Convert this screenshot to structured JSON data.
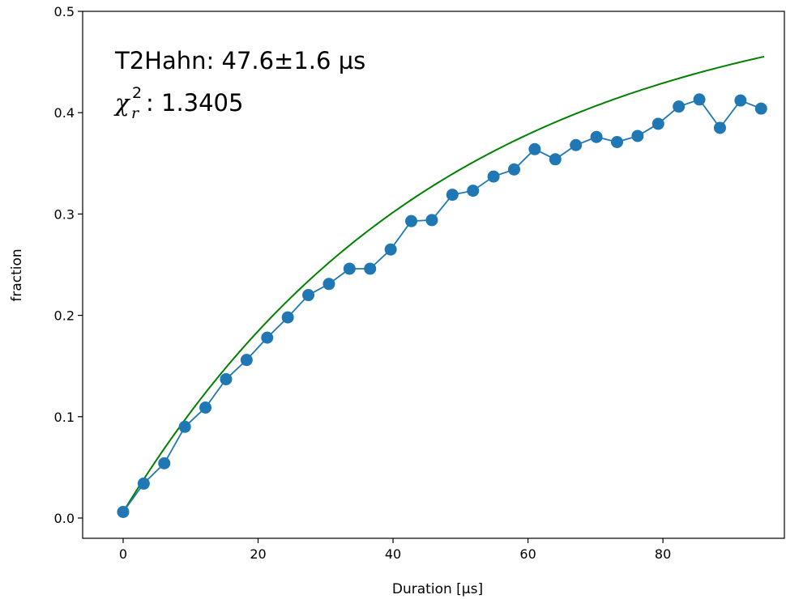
{
  "chart_data": {
    "type": "line",
    "xlabel": "Duration [µs]",
    "ylabel": "fraction",
    "xlim": [
      -6,
      98
    ],
    "ylim": [
      -0.02,
      0.5
    ],
    "xticks": [
      0,
      20,
      40,
      60,
      80
    ],
    "xtick_labels": [
      "0",
      "20",
      "40",
      "60",
      "80"
    ],
    "yticks": [
      0.0,
      0.1,
      0.2,
      0.3,
      0.4,
      0.5
    ],
    "ytick_labels": [
      "0.0",
      "0.1",
      "0.2",
      "0.3",
      "0.4",
      "0.5"
    ],
    "grid": false,
    "annotation": {
      "line1": "T2Hahn: 47.6±1.6 µs",
      "chi_symbol": "χ",
      "chi_sub": "r",
      "chi_sup": "2",
      "chi_value": ": 1.3405"
    },
    "series": [
      {
        "style": "line-markers",
        "color": "#1f77b4",
        "x": [
          0,
          3.05,
          6.1,
          9.15,
          12.2,
          15.25,
          18.3,
          21.35,
          24.4,
          27.45,
          30.5,
          33.55,
          36.6,
          39.65,
          42.7,
          45.75,
          48.8,
          51.85,
          54.9,
          57.95,
          61.0,
          64.05,
          67.1,
          70.15,
          73.2,
          76.25,
          79.3,
          82.35,
          85.4,
          88.45,
          91.5,
          94.55
        ],
        "y": [
          0.006,
          0.034,
          0.054,
          0.09,
          0.109,
          0.137,
          0.156,
          0.178,
          0.198,
          0.22,
          0.231,
          0.246,
          0.246,
          0.265,
          0.293,
          0.294,
          0.319,
          0.323,
          0.337,
          0.344,
          0.364,
          0.354,
          0.368,
          0.376,
          0.371,
          0.377,
          0.389,
          0.406,
          0.413,
          0.385,
          0.412,
          0.404
        ]
      },
      {
        "style": "line",
        "color": "#008000",
        "fit": {
          "amplitude": 0.52,
          "t2": 47.6,
          "offset": 0.006
        },
        "x_range": [
          0,
          95
        ]
      }
    ]
  }
}
